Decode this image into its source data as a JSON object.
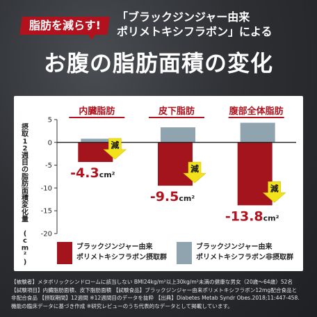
{
  "badge": "脂肪を減らす!",
  "subtitle_lines": [
    "「ブラックジンジャー由来",
    "ポリメトキシフラボン」による"
  ],
  "headline": "お腹の脂肪面積の変化",
  "colors": {
    "accent": "#b1121d",
    "bar_red": "#a3141c",
    "bar_gray": "#8fa4ae",
    "highlight": "#f2e21b"
  },
  "chart_data": {
    "type": "bar",
    "categories": [
      "内臓脂肪",
      "皮下脂肪",
      "腹部全体脂肪"
    ],
    "ylabel": "摂取12週目の脂肪面積変化量 (cm²)",
    "ylim": [
      -20,
      5
    ],
    "yticks": [
      5,
      0,
      -5,
      -10,
      -15,
      -20
    ],
    "series": [
      {
        "name": "ブラックジンジャー由来ポリメトキシフラボン摂取群",
        "values": [
          -4.3,
          -9.5,
          -13.8
        ],
        "color": "#a3141c"
      },
      {
        "name": "ブラックジンジャー由来ポリメトキシフラボン非摂取群",
        "values": [
          0.8,
          3.3,
          4.3
        ],
        "color": "#8fa4ae"
      }
    ],
    "data_labels": [
      "-4.3",
      "-9.5",
      "-13.8"
    ],
    "unit": "cm²",
    "reduction_label": "減",
    "grid": false,
    "legend_position": "bottom"
  },
  "legend": [
    {
      "line1": "ブラックジンジャー由来",
      "line2": "ポリメトキシフラボン摂取群"
    },
    {
      "line1": "ブラックジンジャー由来",
      "line2": "ポリメトキシフラボン非摂取群"
    }
  ],
  "notes": [
    "【被験者】メタボリックシンドロームに該当しない BMI24kg/m²以上30kg/m²未満の健康な男女（20歳〜64歳）52名",
    "【試験項目】内臓脂肪面積、皮下脂肪面積 【試験食品】ブラックジンジャー由来ポリメトキシフラボン12mg配合食品と",
    "非配合食品 【摂取期間】12週間 ※12週間目のデータを抜粋 【出典】Diabetes Metab Syndr Obes.2018;11:447-458.",
    "機能の臨床データに基づき作成 ※研究レビューのうち代表的なデータとして掲載しています。"
  ]
}
